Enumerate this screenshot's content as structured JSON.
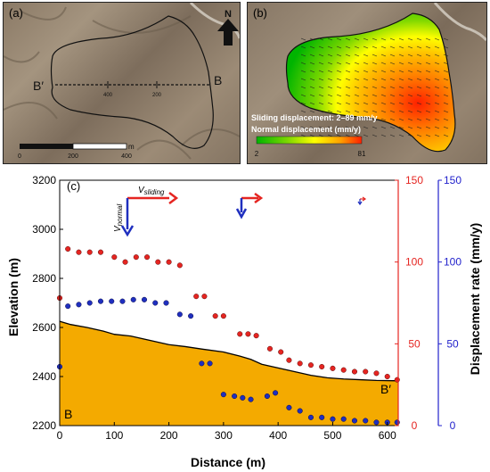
{
  "panels": {
    "a": {
      "label": "(a)",
      "section_left": "B′",
      "section_right": "B",
      "section_ticks": [
        "400",
        "200"
      ],
      "north": "N",
      "scale_unit": "m",
      "scale_ticks": [
        "0",
        "200",
        "400"
      ]
    },
    "b": {
      "label": "(b)",
      "legend_title": "Sliding displacement: 2–89 mm/y",
      "legend_subtitle": "Normal displacement (mm/y)",
      "legend_min": "2",
      "legend_max": "81",
      "colors": [
        "#00b400",
        "#7fd800",
        "#ffff00",
        "#ffa000",
        "#ff2000"
      ]
    }
  },
  "chart_data": {
    "type": "scatter",
    "panel_label": "(c)",
    "xlabel": "Distance (m)",
    "ylabel_left": "Elevation (m)",
    "ylabel_right": "Displacement rate (mm/y)",
    "xlim": [
      0,
      620
    ],
    "ylim_left": [
      2200,
      3200
    ],
    "ylim_right_sliding": [
      0,
      150
    ],
    "ylim_right_normal": [
      0,
      150
    ],
    "x_ticks": [
      0,
      100,
      200,
      300,
      400,
      500,
      600
    ],
    "y_ticks_left": [
      2200,
      2400,
      2600,
      2800,
      3000,
      3200
    ],
    "y_ticks_right_sliding": [
      0,
      50,
      100,
      150
    ],
    "y_ticks_right_normal": [
      0,
      50,
      100,
      150
    ],
    "colors": {
      "terrain": "#f4aa00",
      "sliding": "#e52521",
      "normal": "#1f2fbf",
      "sliding_axis": "#e52521",
      "normal_axis": "#2222cc"
    },
    "profile": {
      "x": [
        0,
        20,
        50,
        80,
        100,
        130,
        150,
        180,
        200,
        230,
        260,
        300,
        330,
        350,
        370,
        400,
        430,
        460,
        490,
        520,
        550,
        580,
        610,
        620
      ],
      "elevation": [
        2625,
        2612,
        2600,
        2585,
        2572,
        2565,
        2555,
        2540,
        2530,
        2522,
        2512,
        2500,
        2483,
        2470,
        2450,
        2435,
        2420,
        2405,
        2395,
        2390,
        2387,
        2384,
        2383,
        2383
      ]
    },
    "sliding_rate": {
      "x": [
        0,
        15,
        35,
        55,
        75,
        100,
        120,
        140,
        160,
        180,
        200,
        220,
        250,
        265,
        285,
        300,
        330,
        345,
        360,
        385,
        405,
        420,
        440,
        460,
        480,
        500,
        520,
        540,
        560,
        580,
        600,
        618
      ],
      "values": [
        78,
        108,
        106,
        106,
        106,
        103,
        100,
        103,
        103,
        100,
        100,
        98,
        79,
        79,
        67,
        67,
        56,
        56,
        55,
        47,
        45,
        40,
        38,
        37,
        36,
        35,
        34,
        33,
        33,
        32,
        30,
        28
      ]
    },
    "normal_rate": {
      "x": [
        0,
        15,
        35,
        55,
        75,
        95,
        115,
        135,
        155,
        175,
        195,
        220,
        240,
        260,
        275,
        300,
        320,
        335,
        350,
        380,
        395,
        420,
        440,
        460,
        480,
        500,
        520,
        540,
        560,
        580,
        600,
        618
      ],
      "values": [
        36,
        73,
        74,
        75,
        76,
        76,
        76,
        77,
        77,
        75,
        75,
        68,
        67,
        38,
        38,
        19,
        18,
        17,
        16,
        18,
        20,
        11,
        9,
        5,
        5,
        4,
        4,
        3,
        3,
        2,
        2,
        2
      ]
    },
    "profile_labels": {
      "start": "B",
      "end": "B′"
    },
    "arrow_labels": {
      "sliding": "V",
      "sliding_sub": "sliding",
      "normal": "V",
      "normal_sub": "normal"
    }
  }
}
